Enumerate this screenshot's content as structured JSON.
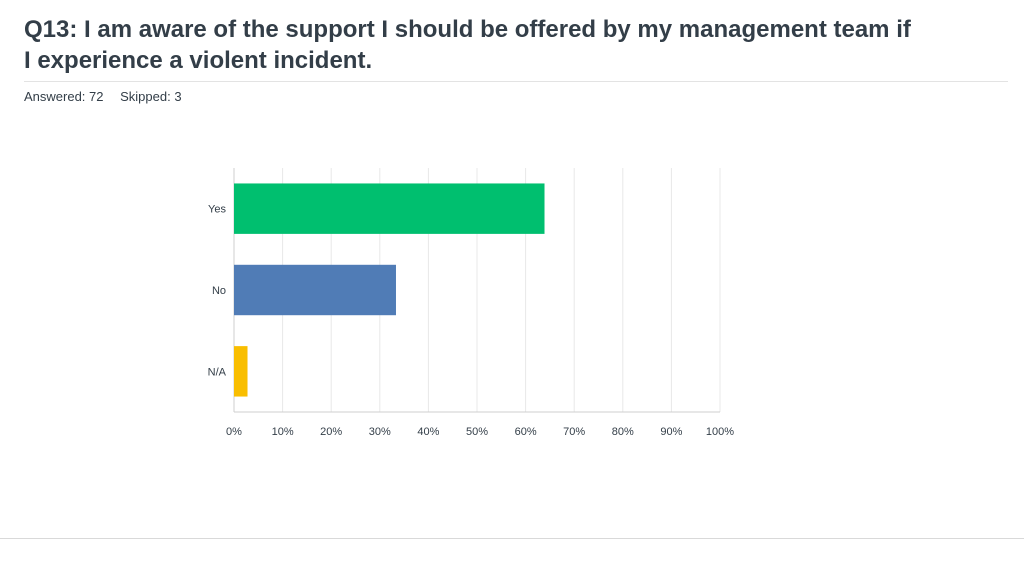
{
  "question": {
    "title": "Q13: I am aware of the support I should be offered by my management team if I experience a violent incident.",
    "answered": "Answered: 72",
    "skipped": "Skipped: 3"
  },
  "chart_data": {
    "type": "bar",
    "orientation": "horizontal",
    "categories": [
      "Yes",
      "No",
      "N/A"
    ],
    "values": [
      63.89,
      33.33,
      2.78
    ],
    "colors": [
      "#00bf6f",
      "#507cb6",
      "#f9be00"
    ],
    "xlim": [
      0,
      100
    ],
    "x_ticks": [
      "0%",
      "10%",
      "20%",
      "30%",
      "40%",
      "50%",
      "60%",
      "70%",
      "80%",
      "90%",
      "100%"
    ],
    "grid": true,
    "legend": "none"
  }
}
